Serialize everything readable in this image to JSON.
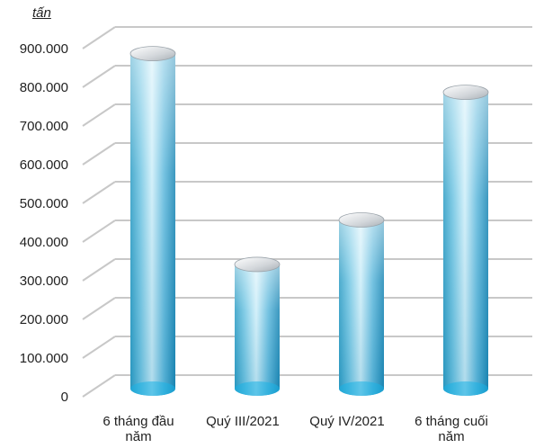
{
  "chart_data": {
    "type": "bar",
    "unit": "tấn",
    "title": "",
    "xlabel": "",
    "ylabel": "",
    "categories": [
      "6 tháng đầu năm",
      "Quý III/2021",
      "Quý IV/2021",
      "6 tháng cuối năm"
    ],
    "values": [
      880000,
      335000,
      450000,
      780000
    ],
    "ylim": [
      0,
      900000
    ],
    "yticks": [
      {
        "value": 0,
        "label": "0"
      },
      {
        "value": 100000,
        "label": "100.000"
      },
      {
        "value": 200000,
        "label": "200.000"
      },
      {
        "value": 300000,
        "label": "300.000"
      },
      {
        "value": 400000,
        "label": "400.000"
      },
      {
        "value": 500000,
        "label": "500.000"
      },
      {
        "value": 600000,
        "label": "600.000"
      },
      {
        "value": 700000,
        "label": "700.000"
      },
      {
        "value": 800000,
        "label": "800.000"
      },
      {
        "value": 900000,
        "label": "900.000"
      }
    ],
    "bar_color": "#1e9cc9",
    "bar_highlight": "#e6f6fc",
    "grid": true,
    "legend": "none"
  }
}
